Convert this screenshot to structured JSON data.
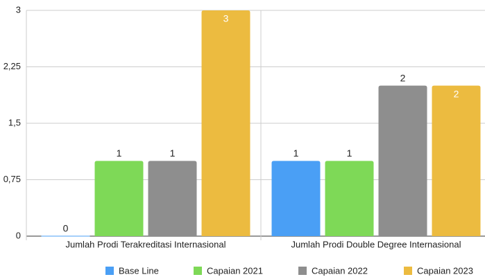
{
  "chart_data": {
    "type": "bar",
    "categories": [
      "Jumlah Prodi Terakreditasi Internasional",
      "Jumlah Prodi Double Degree Internasional"
    ],
    "series": [
      {
        "name": "Base Line",
        "color": "#4a9ff5",
        "values": [
          0,
          1
        ]
      },
      {
        "name": "Capaian 2021",
        "color": "#7ed957",
        "values": [
          1,
          1
        ]
      },
      {
        "name": "Capaian 2022",
        "color": "#8e8e8e",
        "values": [
          1,
          2
        ]
      },
      {
        "name": "Capaian 2023",
        "color": "#ecbb40",
        "values": [
          3,
          2
        ]
      }
    ],
    "ylim": [
      0,
      3
    ],
    "yticks": [
      0,
      {
        "value": 0.75,
        "label": "0,75"
      },
      {
        "value": 1.5,
        "label": "1,5"
      },
      {
        "value": 2.25,
        "label": "2,25"
      },
      3
    ],
    "grid": true
  }
}
